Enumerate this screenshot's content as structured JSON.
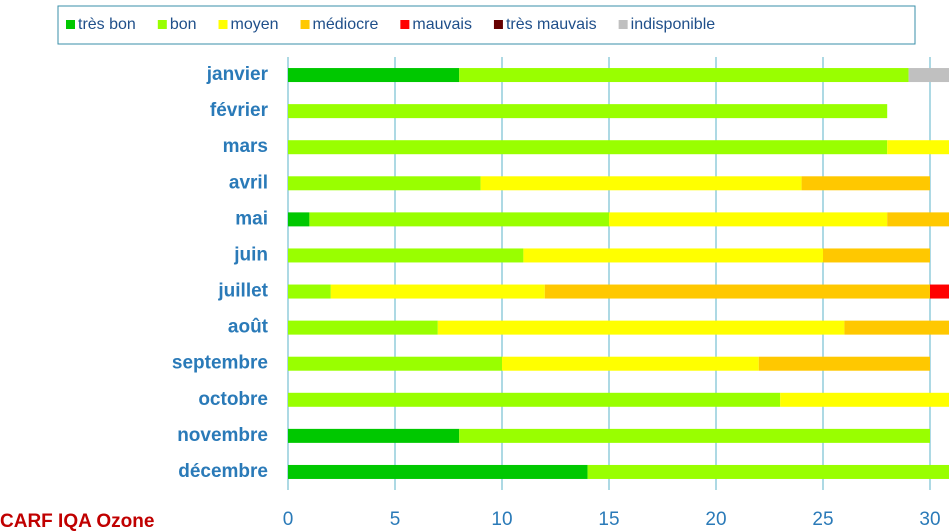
{
  "chart_data": {
    "type": "stacked-barh",
    "annotation": "CARF IQA Ozone",
    "categories": [
      "janvier",
      "février",
      "mars",
      "avril",
      "mai",
      "juin",
      "juillet",
      "août",
      "septembre",
      "octobre",
      "novembre",
      "décembre"
    ],
    "series": [
      {
        "name": "très bon",
        "color": "#00c800",
        "values": [
          8,
          0,
          0,
          0,
          1,
          0,
          0,
          0,
          0,
          0,
          8,
          14
        ]
      },
      {
        "name": "bon",
        "color": "#99ff00",
        "values": [
          21,
          28,
          28,
          9,
          14,
          11,
          2,
          7,
          10,
          23,
          22,
          17
        ]
      },
      {
        "name": "moyen",
        "color": "#ffff00",
        "values": [
          0,
          0,
          3,
          15,
          13,
          14,
          10,
          19,
          12,
          8,
          0,
          0
        ]
      },
      {
        "name": "médiocre",
        "color": "#ffc800",
        "values": [
          0,
          0,
          0,
          6,
          3,
          5,
          18,
          5,
          8,
          0,
          0,
          0
        ]
      },
      {
        "name": "mauvais",
        "color": "#ff0000",
        "values": [
          0,
          0,
          0,
          0,
          0,
          0,
          1,
          0,
          0,
          0,
          0,
          0
        ]
      },
      {
        "name": "très mauvais",
        "color": "#660000",
        "values": [
          0,
          0,
          0,
          0,
          0,
          0,
          0,
          0,
          0,
          0,
          0,
          0
        ]
      },
      {
        "name": "indisponible",
        "color": "#c0c0c0",
        "values": [
          2,
          0,
          0,
          0,
          0,
          0,
          0,
          0,
          0,
          0,
          0,
          0
        ]
      }
    ],
    "xlim": [
      0,
      31
    ],
    "xticks": [
      0,
      5,
      10,
      15,
      20,
      25,
      30
    ],
    "grid": true,
    "legend": "top"
  }
}
